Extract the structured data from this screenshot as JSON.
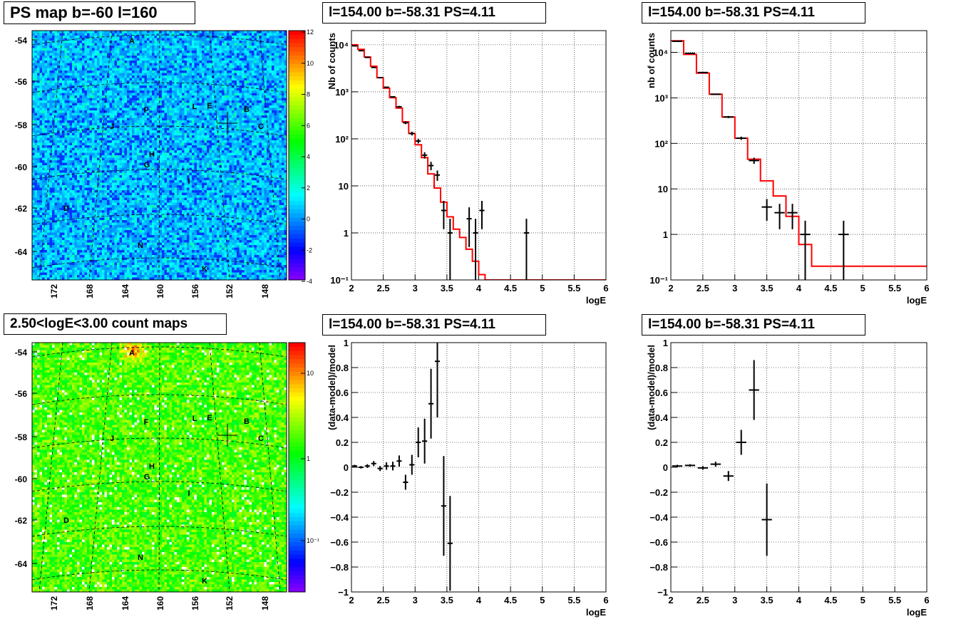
{
  "panels": {
    "map_top_title": "PS map b=-60 l=160",
    "map_bottom_title": "2.50<logE<3.00 count maps",
    "plot_titles": [
      "l=154.00 b=-58.31 PS=4.11",
      "l=154.00 b=-58.31 PS=4.11",
      "l=154.00 b=-58.31 PS=4.11",
      "l=154.00 b=-58.31 PS=4.11"
    ]
  },
  "maps": {
    "y_ticks": [
      "-54",
      "-56",
      "-58",
      "-60",
      "-62",
      "-64"
    ],
    "x_ticks": [
      "172",
      "168",
      "164",
      "160",
      "156",
      "152",
      "148"
    ],
    "source_labels": [
      "A",
      "B",
      "C",
      "D",
      "E",
      "F",
      "G",
      "H",
      "I",
      "J",
      "K",
      "L",
      "N"
    ],
    "top_colorbar_ticks": [
      "12",
      "10",
      "8",
      "6",
      "4",
      "2",
      "0",
      "-2",
      "-4"
    ],
    "bottom_colorbar_ticks": [
      "10",
      "1",
      "10⁻¹"
    ]
  },
  "chart_data": [
    {
      "type": "line",
      "panel": "spectrum-left",
      "xlabel": "logE",
      "ylabel": "Nb of counts",
      "yscale": "log",
      "xlim": [
        2,
        6
      ],
      "ylim": [
        0.1,
        20000
      ],
      "x_ticks": [
        "2",
        "2.5",
        "3",
        "3.5",
        "4",
        "4.5",
        "5",
        "5.5",
        "6"
      ],
      "y_ticks": [
        "10⁻¹",
        "1",
        "10",
        "10²",
        "10³",
        "10⁴"
      ],
      "grid": true,
      "series": [
        {
          "kind": "model-step",
          "color": "#ff0000",
          "x": [
            2.0,
            2.1,
            2.2,
            2.3,
            2.4,
            2.5,
            2.6,
            2.7,
            2.8,
            2.9,
            3.0,
            3.1,
            3.2,
            3.3,
            3.4,
            3.5,
            3.6,
            3.7,
            3.8,
            3.9,
            4.0,
            4.1
          ],
          "y": [
            10000,
            8000,
            5500,
            3500,
            2000,
            1200,
            750,
            450,
            230,
            130,
            75,
            40,
            18,
            9,
            4.5,
            2.2,
            1.2,
            0.8,
            0.45,
            0.25,
            0.13,
            0.1
          ]
        },
        {
          "kind": "data",
          "color": "#000000",
          "x": [
            2.05,
            2.15,
            2.25,
            2.35,
            2.45,
            2.55,
            2.65,
            2.75,
            2.85,
            2.95,
            3.05,
            3.15,
            3.25,
            3.35,
            3.45,
            3.55,
            3.65,
            3.75,
            3.85,
            3.95,
            4.05,
            4.75
          ],
          "y": [
            9500,
            7500,
            5400,
            3300,
            2000,
            1250,
            780,
            480,
            220,
            130,
            90,
            45,
            27,
            17,
            3,
            1,
            0.05,
            0.05,
            2,
            1,
            3,
            1
          ],
          "yerr": [
            100,
            90,
            75,
            60,
            45,
            35,
            28,
            22,
            15,
            12,
            10,
            7,
            5.5,
            4.2,
            1.8,
            1,
            0,
            0,
            1.5,
            1,
            1.8,
            1
          ]
        }
      ]
    },
    {
      "type": "line",
      "panel": "spectrum-right",
      "xlabel": "logE",
      "ylabel": "nb of counts",
      "yscale": "log",
      "xlim": [
        2,
        6
      ],
      "ylim": [
        0.1,
        30000
      ],
      "x_ticks": [
        "2",
        "2.5",
        "3",
        "3.5",
        "4",
        "4.5",
        "5",
        "5.5",
        "6"
      ],
      "y_ticks": [
        "10⁻¹",
        "1",
        "10",
        "10²",
        "10³",
        "10⁴"
      ],
      "grid": true,
      "series": [
        {
          "kind": "model-step",
          "color": "#ff0000",
          "x": [
            2.0,
            2.2,
            2.4,
            2.6,
            2.8,
            3.0,
            3.2,
            3.4,
            3.6,
            3.8,
            4.0,
            4.2
          ],
          "y": [
            18000,
            9000,
            3500,
            1200,
            380,
            130,
            45,
            15,
            7,
            2.5,
            0.6,
            0.2
          ]
        },
        {
          "kind": "data",
          "color": "#000000",
          "x": [
            2.1,
            2.3,
            2.5,
            2.7,
            2.9,
            3.1,
            3.3,
            3.5,
            3.7,
            3.9,
            4.1,
            4.3,
            4.7
          ],
          "y": [
            17500,
            9500,
            3600,
            1200,
            380,
            130,
            42,
            4,
            3,
            3,
            1,
            0.05,
            1
          ],
          "yerr": [
            130,
            95,
            60,
            35,
            20,
            11,
            6.5,
            2,
            1.7,
            1.7,
            1,
            0,
            1
          ]
        }
      ]
    },
    {
      "type": "scatter",
      "panel": "ratio-left",
      "xlabel": "logE",
      "ylabel": "(data-model)/model",
      "xlim": [
        2,
        6
      ],
      "ylim": [
        -1,
        1
      ],
      "x_ticks": [
        "2",
        "2.5",
        "3",
        "3.5",
        "4",
        "4.5",
        "5",
        "5.5",
        "6"
      ],
      "y_ticks": [
        "−1",
        "−0.8",
        "−0.6",
        "−0.4",
        "−0.2",
        "0",
        "0.2",
        "0.4",
        "0.6",
        "0.8",
        "1"
      ],
      "grid": true,
      "series": [
        {
          "kind": "data",
          "color": "#000000",
          "x": [
            2.05,
            2.15,
            2.25,
            2.35,
            2.45,
            2.55,
            2.65,
            2.75,
            2.85,
            2.95,
            3.05,
            3.15,
            3.25,
            3.35,
            3.45,
            3.55
          ],
          "y": [
            0.01,
            0.0,
            0.01,
            0.03,
            -0.01,
            0.01,
            0.01,
            0.05,
            -0.12,
            0.02,
            0.2,
            0.21,
            0.51,
            0.85,
            -0.31,
            -0.61
          ],
          "yerr": [
            0.01,
            0.01,
            0.015,
            0.02,
            0.02,
            0.03,
            0.035,
            0.045,
            0.06,
            0.08,
            0.12,
            0.18,
            0.28,
            0.45,
            0.4,
            0.38
          ]
        }
      ]
    },
    {
      "type": "scatter",
      "panel": "ratio-right",
      "xlabel": "logE",
      "ylabel": "(data-model)/model",
      "xlim": [
        2,
        6
      ],
      "ylim": [
        -1,
        1
      ],
      "x_ticks": [
        "2",
        "2.5",
        "3",
        "3.5",
        "4",
        "4.5",
        "5",
        "5.5",
        "6"
      ],
      "y_ticks": [
        "−1",
        "−0.8",
        "−0.6",
        "−0.4",
        "−0.2",
        "0",
        "0.2",
        "0.4",
        "0.6",
        "0.8",
        "1"
      ],
      "grid": true,
      "series": [
        {
          "kind": "data",
          "color": "#000000",
          "x": [
            2.1,
            2.3,
            2.5,
            2.7,
            2.9,
            3.1,
            3.3,
            3.5
          ],
          "y": [
            0.01,
            0.015,
            -0.005,
            0.025,
            -0.07,
            0.2,
            0.62,
            -0.42
          ],
          "yerr": [
            0.01,
            0.01,
            0.015,
            0.02,
            0.04,
            0.1,
            0.24,
            0.29
          ]
        }
      ]
    }
  ]
}
